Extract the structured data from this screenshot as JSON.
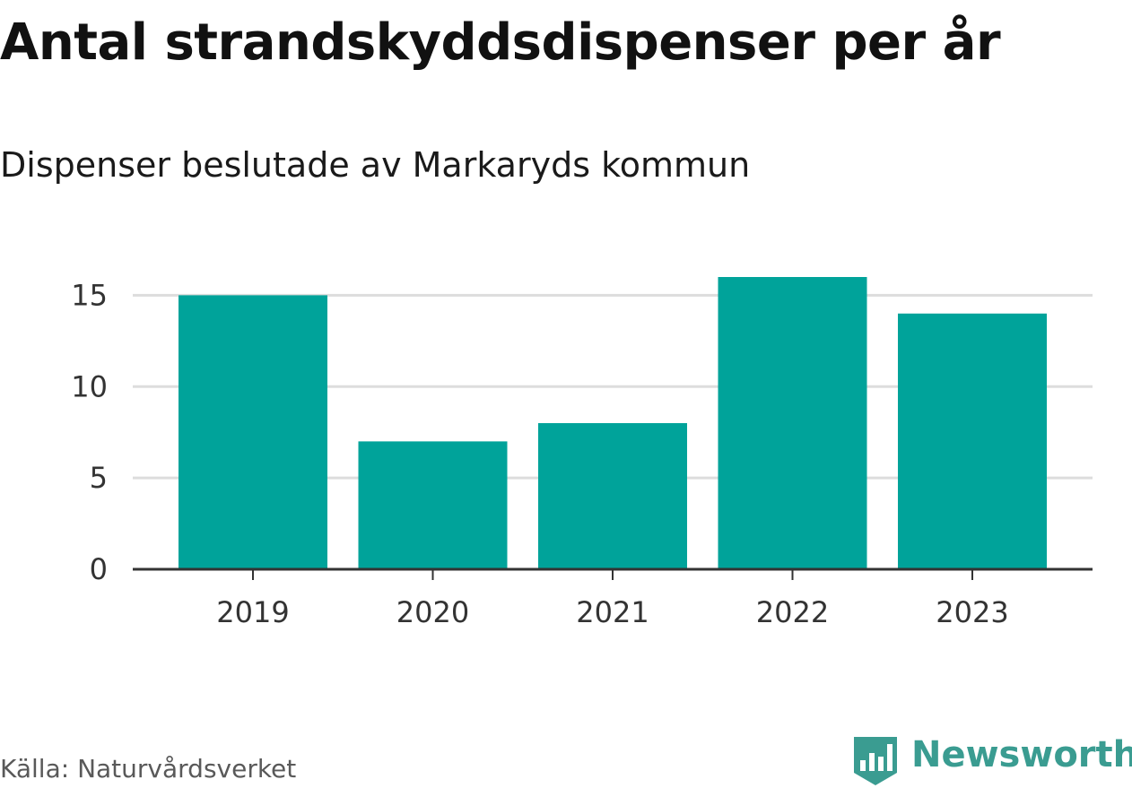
{
  "title": "Antal strandskyddsdispenser per år",
  "subtitle": "Dispenser beslutade av Markaryds kommun",
  "source": "Källa: Naturvårdsverket",
  "brand": {
    "name": "Newsworthy",
    "logo_icon": "newsworthy-logo-icon"
  },
  "colors": {
    "bar": "#00a39a",
    "grid": "#dddddd",
    "axis": "#333333",
    "brand": "#3a9c91"
  },
  "chart_data": {
    "type": "bar",
    "categories": [
      "2019",
      "2020",
      "2021",
      "2022",
      "2023"
    ],
    "values": [
      15,
      7,
      8,
      16,
      14
    ],
    "ylim": [
      0,
      16
    ],
    "yticks": [
      0,
      5,
      10,
      15
    ],
    "xlabel": "",
    "ylabel": "",
    "grid": true,
    "legend": "none"
  }
}
